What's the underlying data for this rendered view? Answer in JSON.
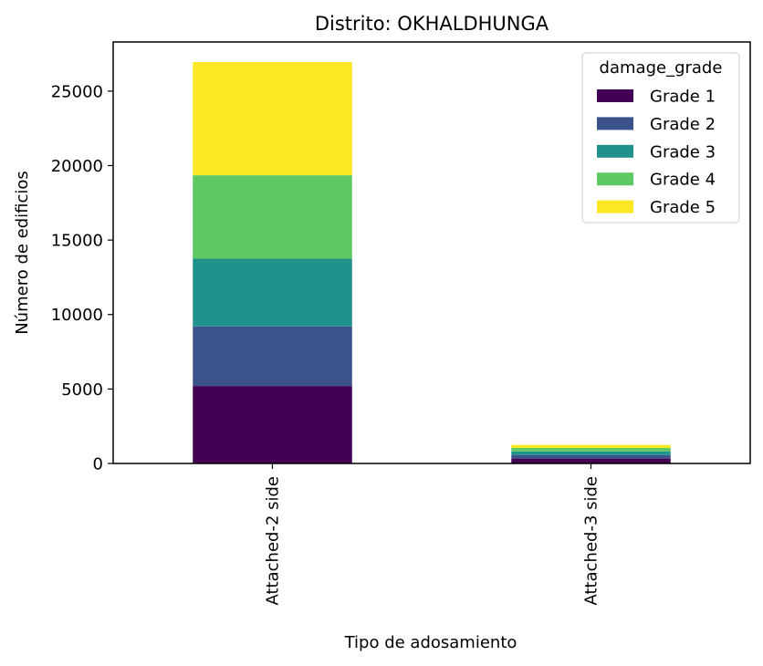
{
  "chart_data": {
    "type": "bar",
    "stacked": true,
    "title": "Distrito: OKHALDHUNGA",
    "xlabel": "Tipo de adosamiento",
    "ylabel": "Número de edificios",
    "categories": [
      "Attached-2 side",
      "Attached-3 side"
    ],
    "ylim": [
      0,
      28300
    ],
    "yticks": [
      0,
      5000,
      10000,
      15000,
      20000,
      25000
    ],
    "grid": false,
    "legend": {
      "title": "damage_grade",
      "position": "top-right"
    },
    "series": [
      {
        "name": "Grade 1",
        "color": "#440154",
        "values": [
          5200,
          330
        ]
      },
      {
        "name": "Grade 2",
        "color": "#3b528b",
        "values": [
          4000,
          230
        ]
      },
      {
        "name": "Grade 3",
        "color": "#21918c",
        "values": [
          4550,
          250
        ]
      },
      {
        "name": "Grade 4",
        "color": "#5ec962",
        "values": [
          5600,
          230
        ]
      },
      {
        "name": "Grade 5",
        "color": "#fde725",
        "values": [
          7600,
          210
        ]
      }
    ]
  }
}
